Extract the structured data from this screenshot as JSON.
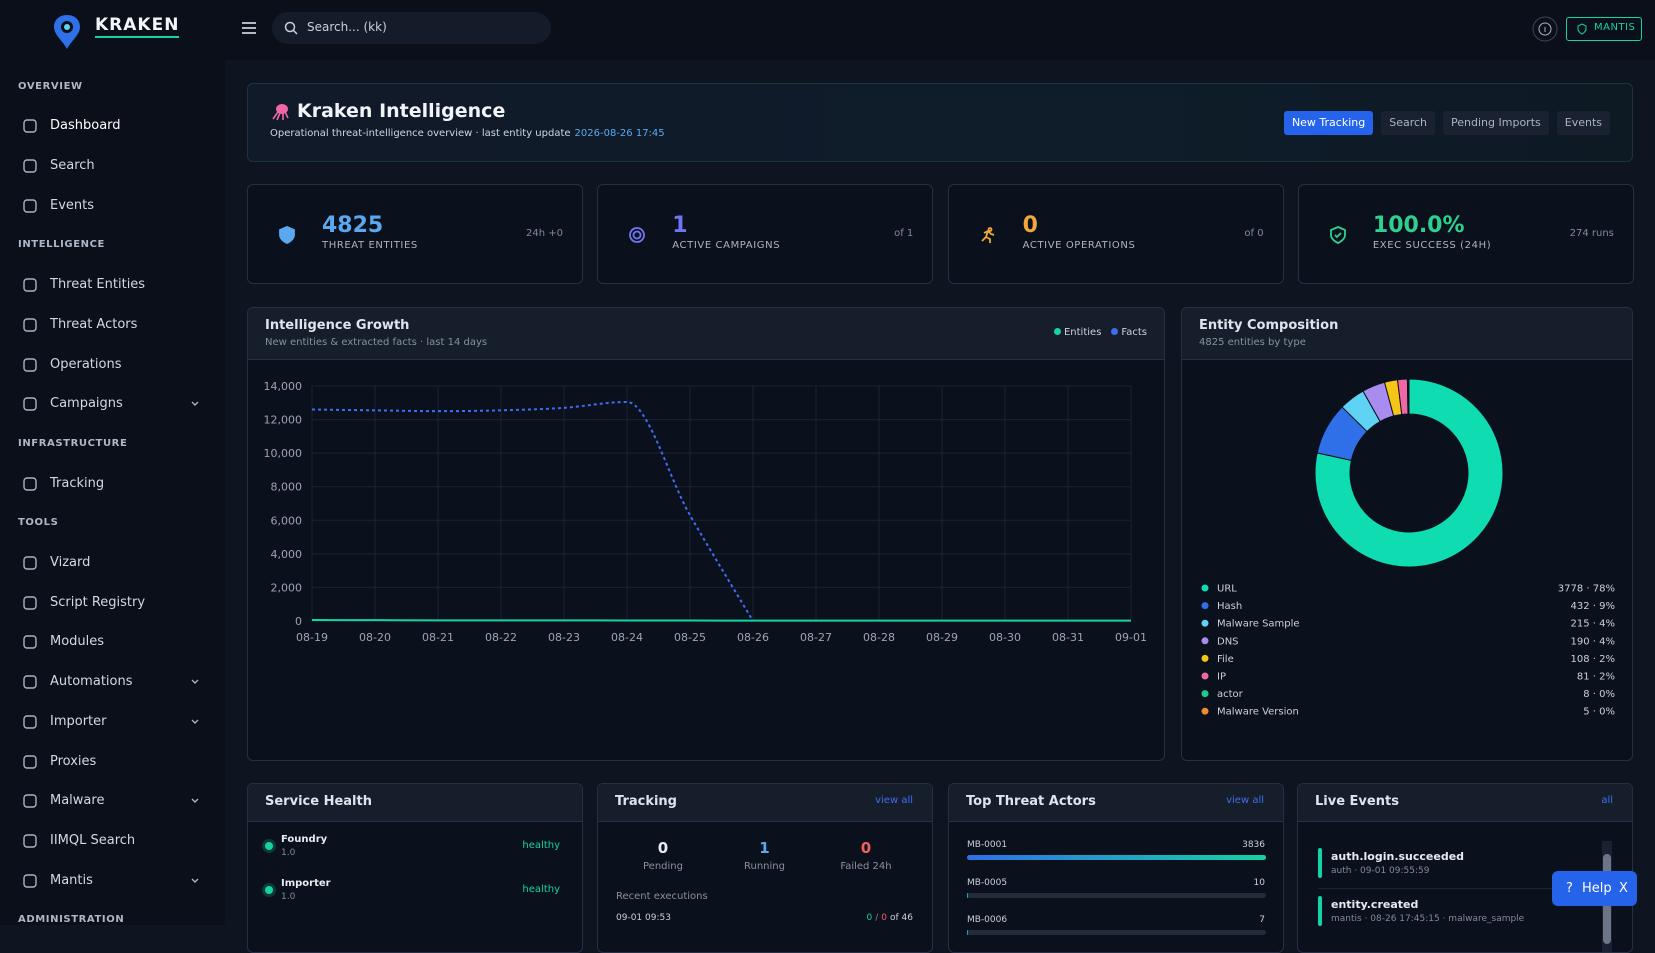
{
  "brand": "KRAKEN",
  "search_placeholder": "Search... (kk)",
  "user": "MANTIS",
  "sidebar": [
    {
      "label": "OVERVIEW",
      "kind": "section"
    },
    {
      "label": "Dashboard",
      "active": true
    },
    {
      "label": "Search"
    },
    {
      "label": "Events"
    },
    {
      "label": "INTELLIGENCE",
      "kind": "section"
    },
    {
      "label": "Threat Entities"
    },
    {
      "label": "Threat Actors"
    },
    {
      "label": "Operations"
    },
    {
      "label": "Campaigns",
      "expandable": true
    },
    {
      "label": "INFRASTRUCTURE",
      "kind": "section"
    },
    {
      "label": "Tracking"
    },
    {
      "label": "TOOLS",
      "kind": "section"
    },
    {
      "label": "Vizard"
    },
    {
      "label": "Script Registry"
    },
    {
      "label": "Modules"
    },
    {
      "label": "Automations",
      "expandable": true
    },
    {
      "label": "Importer",
      "expandable": true
    },
    {
      "label": "Proxies"
    },
    {
      "label": "Malware",
      "expandable": true
    },
    {
      "label": "IIMQL Search"
    },
    {
      "label": "Mantis",
      "expandable": true
    },
    {
      "label": "ADMINISTRATION",
      "kind": "section"
    }
  ],
  "header": {
    "title": "Kraken Intelligence",
    "subtitle": "Operational threat-intelligence overview · last entity update",
    "updated": "2026-08-26 17:45",
    "actions": [
      {
        "label": "New Tracking",
        "primary": true
      },
      {
        "label": "Search"
      },
      {
        "label": "Pending Imports"
      },
      {
        "label": "Events"
      }
    ]
  },
  "stats": [
    {
      "value": "4825",
      "label": "THREAT ENTITIES",
      "note": "24h +0",
      "color": "#5aa9f0"
    },
    {
      "value": "1",
      "label": "ACTIVE CAMPAIGNS",
      "note": "of 1",
      "color": "#6f74f2"
    },
    {
      "value": "0",
      "label": "ACTIVE OPERATIONS",
      "note": "of 0",
      "color": "#f3a73a"
    },
    {
      "value": "100.0%",
      "label": "EXEC SUCCESS (24H)",
      "note": "274 runs",
      "color": "#2fd08f"
    }
  ],
  "chart_data": [
    {
      "type": "line",
      "title": "Intelligence Growth",
      "subtitle": "New entities & extracted facts · last 14 days",
      "categories": [
        "08-19",
        "08-20",
        "08-21",
        "08-22",
        "08-23",
        "08-24",
        "08-25",
        "08-26",
        "08-27",
        "08-28",
        "08-29",
        "08-30",
        "08-31",
        "09-01"
      ],
      "series": [
        {
          "name": "Entities",
          "color": "#14d3a4",
          "style": "solid",
          "values": [
            60,
            50,
            40,
            40,
            40,
            30,
            30,
            20,
            20,
            20,
            20,
            20,
            20,
            20
          ]
        },
        {
          "name": "Facts",
          "color": "#3d6df2",
          "style": "dashed",
          "values": [
            12600,
            12550,
            12500,
            12550,
            12700,
            13050,
            6300,
            0,
            null,
            null,
            null,
            null,
            null,
            null
          ]
        }
      ],
      "ylim": [
        0,
        14000
      ],
      "yticks": [
        0,
        {
          "value": 2000,
          "label": "2,000"
        },
        {
          "value": 4000,
          "label": "4,000"
        },
        {
          "value": 6000,
          "label": "6,000"
        },
        {
          "value": 8000,
          "label": "8,000"
        },
        {
          "value": 10000,
          "label": "10,000"
        },
        {
          "value": 12000,
          "label": "12,000"
        },
        {
          "value": 14000,
          "label": "14,000"
        }
      ],
      "grid": true,
      "legend": "top-right"
    },
    {
      "type": "pie",
      "donut": true,
      "title": "Entity Composition",
      "subtitle": "4825 entities by type",
      "categories": [
        "URL",
        "Hash",
        "Malware Sample",
        "DNS",
        "File",
        "IP",
        "actor",
        "Malware Version"
      ],
      "values": [
        3778,
        432,
        215,
        190,
        108,
        81,
        8,
        5
      ],
      "value_labels": [
        "3778 · 78%",
        "432 · 9%",
        "215 · 4%",
        "190 · 4%",
        "108 · 2%",
        "81 · 2%",
        "8 · 0%",
        "5 · 0%"
      ],
      "colors": [
        "#10dcb2",
        "#2f6fe8",
        "#5fd3f3",
        "#a98cf0",
        "#f5c518",
        "#f067a6",
        "#1fc98a",
        "#f08a2a"
      ]
    }
  ],
  "service_health": {
    "title": "Service Health",
    "services": [
      {
        "name": "Foundry",
        "version": "1.0",
        "status": "healthy"
      },
      {
        "name": "Importer",
        "version": "1.0",
        "status": "healthy"
      }
    ]
  },
  "tracking": {
    "title": "Tracking",
    "link": "view all",
    "counts": [
      {
        "value": "0",
        "label": "Pending",
        "color": "#e6ebf2"
      },
      {
        "value": "1",
        "label": "Running",
        "color": "#5aa9f0"
      },
      {
        "value": "0",
        "label": "Failed 24h",
        "color": "#f0605a"
      }
    ],
    "recent_title": "Recent executions",
    "recent": [
      {
        "time": "09-01 09:53",
        "result": [
          "0",
          "/",
          "0",
          "of 46"
        ]
      }
    ]
  },
  "top_actors": {
    "title": "Top Threat Actors",
    "link": "view all",
    "xlim": [
      0,
      3836
    ],
    "actors": [
      {
        "name": "MB-0001",
        "value": 3836
      },
      {
        "name": "MB-0005",
        "value": 10
      },
      {
        "name": "MB-0006",
        "value": 7
      }
    ]
  },
  "live_events": {
    "title": "Live Events",
    "link": "all",
    "events": [
      {
        "name": "auth.login.succeeded",
        "meta": "auth · 09-01 09:55:59"
      },
      {
        "name": "entity.created",
        "meta": "mantis · 08-26 17:45:15 · malware_sample"
      }
    ]
  },
  "help": {
    "icon": "?",
    "label": "Help",
    "close": "X"
  }
}
